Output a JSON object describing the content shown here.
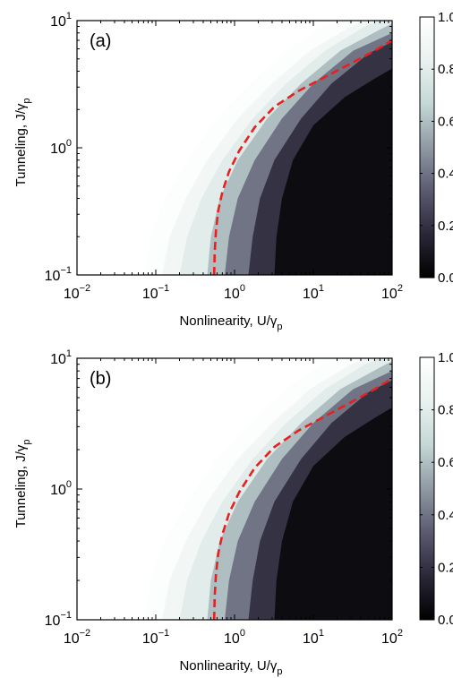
{
  "chart_data": [
    {
      "type": "heatmap",
      "panel_label": "(a)",
      "xlabel": {
        "text": "Nonlinearity, U/γ",
        "sub": "p"
      },
      "ylabel": {
        "text": "Tunneling, J/γ",
        "sub": "p"
      },
      "x_scale": "log",
      "y_scale": "log",
      "xlim": [
        0.01,
        100
      ],
      "ylim": [
        0.1,
        10
      ],
      "x_ticks": [
        {
          "base": "10",
          "exp": "−2"
        },
        {
          "base": "10",
          "exp": "−1"
        },
        {
          "base": "10",
          "exp": "0"
        },
        {
          "base": "10",
          "exp": "1"
        },
        {
          "base": "10",
          "exp": "2"
        }
      ],
      "y_ticks": [
        {
          "base": "10",
          "exp": "−1"
        },
        {
          "base": "10",
          "exp": "0"
        },
        {
          "base": "10",
          "exp": "1"
        }
      ],
      "colorbar": {
        "range": [
          0.0,
          1.0
        ],
        "ticks": [
          "0.0",
          "0.2",
          "0.4",
          "0.6",
          "0.8",
          "1.0"
        ],
        "colormap": [
          "#000000",
          "#2a2838",
          "#5b5a70",
          "#8f9aa3",
          "#c4d8d5",
          "#e9f2f0",
          "#ffffff"
        ]
      },
      "boundaries": [
        {
          "level": 0.98,
          "points": [
            [
              0.07,
              0.1
            ],
            [
              0.085,
              0.2
            ],
            [
              0.13,
              0.4
            ],
            [
              0.25,
              0.8
            ],
            [
              0.6,
              1.7
            ],
            [
              1.6,
              3.2
            ],
            [
              4.5,
              5.8
            ],
            [
              13,
              9.0
            ],
            [
              22,
              10
            ]
          ]
        },
        {
          "level": 0.9,
          "points": [
            [
              0.12,
              0.1
            ],
            [
              0.15,
              0.2
            ],
            [
              0.24,
              0.4
            ],
            [
              0.45,
              0.8
            ],
            [
              1.1,
              1.7
            ],
            [
              3.0,
              3.2
            ],
            [
              9.0,
              5.8
            ],
            [
              30,
              9.0
            ],
            [
              45,
              10
            ]
          ]
        },
        {
          "level": 0.8,
          "points": [
            [
              0.2,
              0.1
            ],
            [
              0.25,
              0.2
            ],
            [
              0.38,
              0.4
            ],
            [
              0.7,
              0.8
            ],
            [
              1.7,
              1.7
            ],
            [
              4.5,
              3.2
            ],
            [
              14,
              5.8
            ],
            [
              45,
              9.0
            ],
            [
              70,
              10
            ]
          ]
        },
        {
          "level": 0.6,
          "points": [
            [
              0.45,
              0.1
            ],
            [
              0.5,
              0.2
            ],
            [
              0.65,
              0.4
            ],
            [
              1.1,
              0.8
            ],
            [
              2.6,
              1.7
            ],
            [
              7.0,
              3.2
            ],
            [
              22,
              5.8
            ],
            [
              70,
              8.5
            ],
            [
              100,
              9.5
            ]
          ]
        },
        {
          "level": 0.4,
          "points": [
            [
              0.75,
              0.1
            ],
            [
              0.85,
              0.2
            ],
            [
              1.1,
              0.4
            ],
            [
              1.8,
              0.8
            ],
            [
              4.0,
              1.7
            ],
            [
              10,
              3.2
            ],
            [
              32,
              5.8
            ],
            [
              100,
              8.0
            ]
          ]
        },
        {
          "level": 0.2,
          "points": [
            [
              1.5,
              0.1
            ],
            [
              1.7,
              0.2
            ],
            [
              2.1,
              0.4
            ],
            [
              3.2,
              0.8
            ],
            [
              7.0,
              1.7
            ],
            [
              17,
              3.2
            ],
            [
              50,
              5.5
            ],
            [
              100,
              6.8
            ]
          ]
        },
        {
          "level": 0.05,
          "points": [
            [
              3.2,
              0.1
            ],
            [
              3.4,
              0.2
            ],
            [
              4.0,
              0.4
            ],
            [
              5.5,
              0.8
            ],
            [
              10,
              1.5
            ],
            [
              25,
              2.5
            ],
            [
              60,
              3.5
            ],
            [
              100,
              4.2
            ]
          ]
        }
      ],
      "series": [
        {
          "style": "dashed",
          "color": "#e8201f",
          "x": [
            0.55,
            0.56,
            0.58,
            0.62,
            0.7,
            0.85,
            1.15,
            1.8,
            3.2,
            6.5,
            14,
            30,
            60,
            100
          ],
          "y": [
            0.1,
            0.15,
            0.22,
            0.32,
            0.45,
            0.65,
            0.95,
            1.45,
            2.1,
            2.8,
            3.6,
            4.6,
            5.8,
            7.0
          ]
        }
      ]
    },
    {
      "type": "heatmap",
      "panel_label": "(b)",
      "xlabel": {
        "text": "Nonlinearity, U/γ",
        "sub": "p"
      },
      "ylabel": {
        "text": "Tunneling, J/γ",
        "sub": "p"
      },
      "x_scale": "log",
      "y_scale": "log",
      "xlim": [
        0.01,
        100
      ],
      "ylim": [
        0.1,
        10
      ],
      "x_ticks": [
        {
          "base": "10",
          "exp": "−2"
        },
        {
          "base": "10",
          "exp": "−1"
        },
        {
          "base": "10",
          "exp": "0"
        },
        {
          "base": "10",
          "exp": "1"
        },
        {
          "base": "10",
          "exp": "2"
        }
      ],
      "y_ticks": [
        {
          "base": "10",
          "exp": "−1"
        },
        {
          "base": "10",
          "exp": "0"
        },
        {
          "base": "10",
          "exp": "1"
        }
      ],
      "colorbar": {
        "range": [
          0.0,
          1.0
        ],
        "ticks": [
          "0.0",
          "0.2",
          "0.4",
          "0.6",
          "0.8",
          "1.0"
        ],
        "colormap": [
          "#000000",
          "#2a2838",
          "#5b5a70",
          "#8f9aa3",
          "#c4d8d5",
          "#e9f2f0",
          "#ffffff"
        ]
      },
      "boundaries": [
        {
          "level": 0.98,
          "points": [
            [
              0.07,
              0.1
            ],
            [
              0.085,
              0.2
            ],
            [
              0.13,
              0.4
            ],
            [
              0.25,
              0.8
            ],
            [
              0.6,
              1.7
            ],
            [
              1.6,
              3.2
            ],
            [
              4.5,
              5.8
            ],
            [
              13,
              9.0
            ],
            [
              22,
              10
            ]
          ]
        },
        {
          "level": 0.9,
          "points": [
            [
              0.12,
              0.1
            ],
            [
              0.15,
              0.2
            ],
            [
              0.24,
              0.4
            ],
            [
              0.45,
              0.8
            ],
            [
              1.1,
              1.7
            ],
            [
              3.0,
              3.2
            ],
            [
              9.0,
              5.8
            ],
            [
              30,
              9.0
            ],
            [
              45,
              10
            ]
          ]
        },
        {
          "level": 0.8,
          "points": [
            [
              0.2,
              0.1
            ],
            [
              0.25,
              0.2
            ],
            [
              0.38,
              0.4
            ],
            [
              0.7,
              0.8
            ],
            [
              1.7,
              1.7
            ],
            [
              4.5,
              3.2
            ],
            [
              14,
              5.8
            ],
            [
              45,
              9.0
            ],
            [
              70,
              10
            ]
          ]
        },
        {
          "level": 0.6,
          "points": [
            [
              0.45,
              0.1
            ],
            [
              0.5,
              0.2
            ],
            [
              0.65,
              0.4
            ],
            [
              1.1,
              0.8
            ],
            [
              2.6,
              1.7
            ],
            [
              7.0,
              3.2
            ],
            [
              22,
              5.8
            ],
            [
              70,
              8.5
            ],
            [
              100,
              9.5
            ]
          ]
        },
        {
          "level": 0.4,
          "points": [
            [
              0.75,
              0.1
            ],
            [
              0.85,
              0.2
            ],
            [
              1.1,
              0.4
            ],
            [
              1.8,
              0.8
            ],
            [
              4.0,
              1.7
            ],
            [
              10,
              3.2
            ],
            [
              32,
              5.8
            ],
            [
              100,
              8.0
            ]
          ]
        },
        {
          "level": 0.2,
          "points": [
            [
              1.5,
              0.1
            ],
            [
              1.7,
              0.2
            ],
            [
              2.1,
              0.4
            ],
            [
              3.2,
              0.8
            ],
            [
              7.0,
              1.7
            ],
            [
              17,
              3.2
            ],
            [
              50,
              5.5
            ],
            [
              100,
              6.8
            ]
          ]
        },
        {
          "level": 0.05,
          "points": [
            [
              3.2,
              0.1
            ],
            [
              3.4,
              0.2
            ],
            [
              4.0,
              0.4
            ],
            [
              5.5,
              0.8
            ],
            [
              10,
              1.5
            ],
            [
              25,
              2.5
            ],
            [
              60,
              3.5
            ],
            [
              100,
              4.2
            ]
          ]
        }
      ],
      "series": [
        {
          "style": "dashed",
          "color": "#e8201f",
          "x": [
            0.55,
            0.56,
            0.58,
            0.62,
            0.7,
            0.85,
            1.15,
            1.8,
            3.2,
            6.5,
            14,
            30,
            60,
            100
          ],
          "y": [
            0.1,
            0.15,
            0.22,
            0.32,
            0.45,
            0.65,
            0.95,
            1.45,
            2.1,
            2.8,
            3.6,
            4.6,
            5.8,
            7.0
          ]
        }
      ]
    }
  ]
}
